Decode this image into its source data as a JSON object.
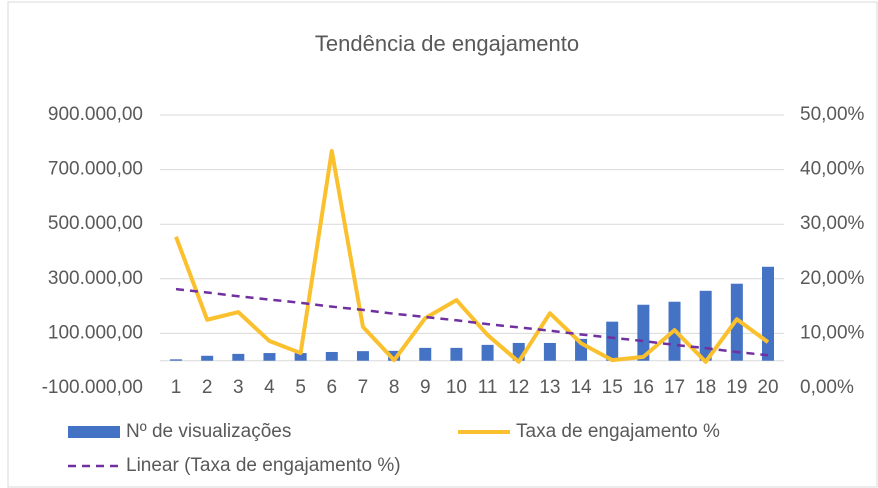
{
  "chart_data": {
    "type": "combo",
    "title": "Tendência de engajamento",
    "categories": [
      "1",
      "2",
      "3",
      "4",
      "5",
      "6",
      "7",
      "8",
      "9",
      "10",
      "11",
      "12",
      "13",
      "14",
      "15",
      "16",
      "17",
      "18",
      "19",
      "20"
    ],
    "series": [
      {
        "name": "Nº de visualizações",
        "type": "bar",
        "color": "#4472c4",
        "axis": "y",
        "values": [
          5000,
          18000,
          25000,
          28000,
          28000,
          32000,
          35000,
          36000,
          47000,
          47000,
          58000,
          65000,
          65000,
          80000,
          143000,
          205000,
          216000,
          256000,
          282000,
          344000
        ]
      },
      {
        "name": "Taxa de engajamento %",
        "type": "line",
        "color": "#fbc02d",
        "axis": "y2",
        "values": [
          27.7,
          12.5,
          13.9,
          8.6,
          6.4,
          43.4,
          11.2,
          5.1,
          12.8,
          16.1,
          9.7,
          4.8,
          13.7,
          8.2,
          5.1,
          5.7,
          10.6,
          4.8,
          12.6,
          8.4
        ]
      },
      {
        "name": "Linear (Taxa de engajamento %)",
        "type": "line",
        "color": "#7030a0",
        "axis": "y2",
        "dashed": true,
        "values": [
          18.1,
          17.5,
          16.8,
          16.2,
          15.6,
          14.9,
          14.3,
          13.6,
          13.0,
          12.4,
          11.7,
          11.1,
          10.5,
          9.8,
          9.2,
          8.6,
          7.9,
          7.3,
          6.6,
          6.0
        ]
      }
    ],
    "ylim": [
      -100000,
      900000
    ],
    "yticks": [
      {
        "value": -100000,
        "label": "-100.000,00"
      },
      {
        "value": 100000,
        "label": "100.000,00"
      },
      {
        "value": 300000,
        "label": "300.000,00"
      },
      {
        "value": 500000,
        "label": "500.000,00"
      },
      {
        "value": 700000,
        "label": "700.000,00"
      },
      {
        "value": 900000,
        "label": "900.000,00"
      }
    ],
    "y2lim": [
      0,
      50
    ],
    "y2ticks": [
      {
        "value": 0,
        "label": "0,00%"
      },
      {
        "value": 10,
        "label": "10,00%"
      },
      {
        "value": 20,
        "label": "20,00%"
      },
      {
        "value": 30,
        "label": "30,00%"
      },
      {
        "value": 40,
        "label": "40,00%"
      },
      {
        "value": 50,
        "label": "50,00%"
      }
    ],
    "grid": true,
    "legend": "bottom"
  }
}
